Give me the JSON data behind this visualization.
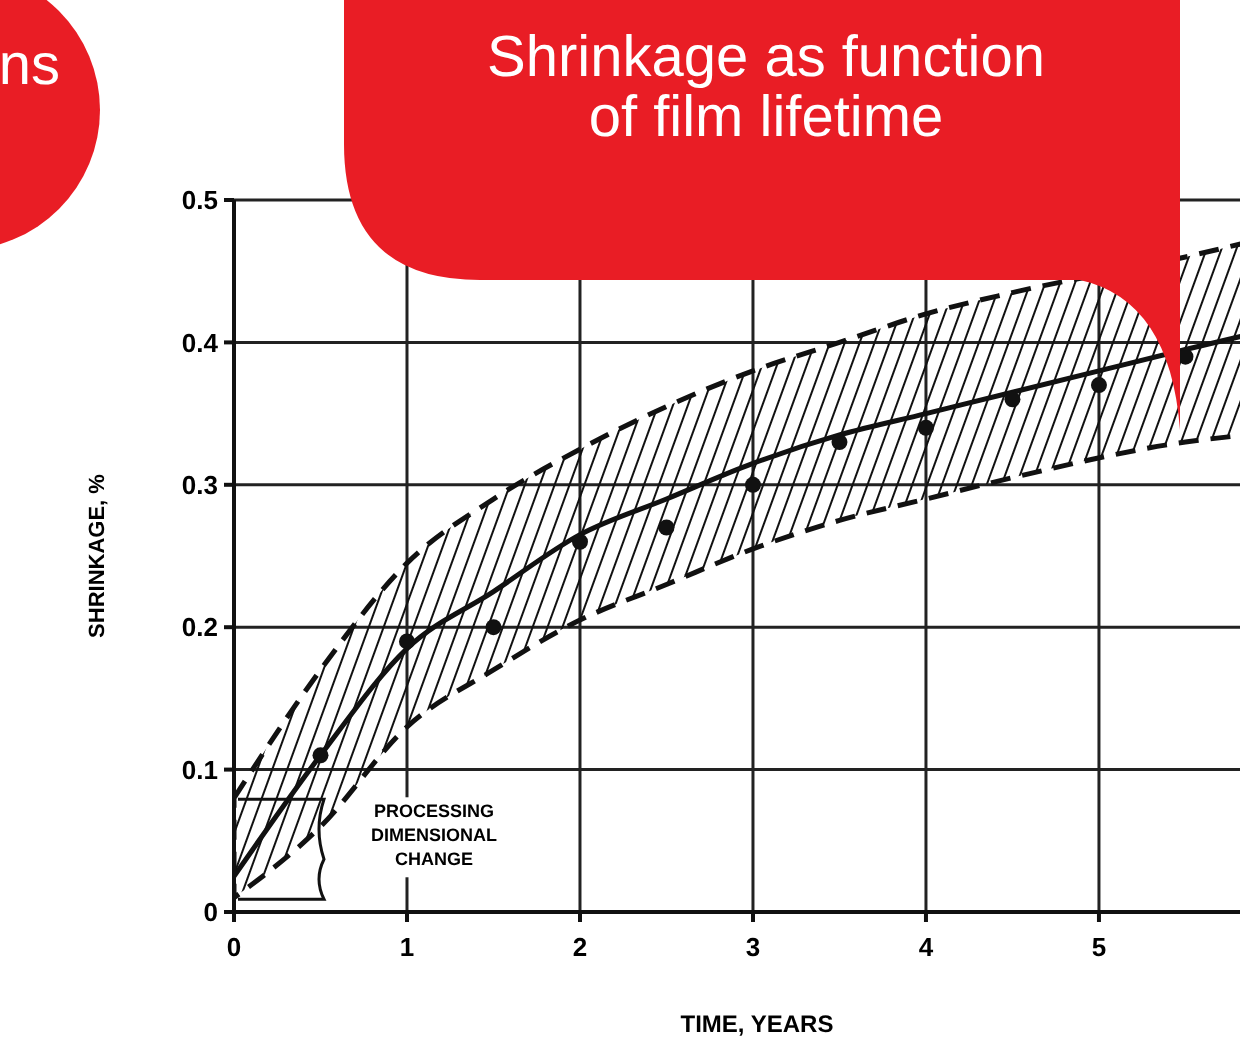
{
  "chart_data": {
    "type": "line",
    "title": "Shrinkage as function of film lifetime",
    "xlabel": "TIME, YEARS",
    "ylabel": "SHRINKAGE, %",
    "annotations": [
      "ns",
      "PROCESSING DIMENSIONAL CHANGE"
    ],
    "xlim": [
      0,
      5.85
    ],
    "xticks": [
      0,
      1,
      2,
      3,
      4,
      5
    ],
    "ylim": [
      0,
      0.5
    ],
    "yticks": [
      0,
      0.1,
      0.2,
      0.3,
      0.4,
      0.5
    ],
    "grid": true,
    "series": [
      {
        "color": "#111111",
        "line_style": "solid",
        "marker": "none",
        "x": [
          0,
          0.5,
          1,
          1.5,
          2,
          2.5,
          3,
          3.5,
          4,
          4.5,
          5,
          5.5,
          5.85
        ],
        "values": [
          0.025,
          0.11,
          0.185,
          0.225,
          0.265,
          0.29,
          0.315,
          0.335,
          0.35,
          0.365,
          0.38,
          0.395,
          0.405
        ],
        "lower": [
          0.01,
          0.06,
          0.13,
          0.17,
          0.205,
          0.23,
          0.255,
          0.275,
          0.29,
          0.305,
          null,
          0.33,
          0.335
        ],
        "upper": [
          0.08,
          0.17,
          0.245,
          0.29,
          0.325,
          0.355,
          0.38,
          0.4,
          0.42,
          0.435,
          null,
          0.46,
          0.47
        ]
      },
      {
        "type": "scatter",
        "color": "#111111",
        "marker": "circle",
        "x": [
          0.5,
          1,
          1.5,
          2,
          2.5,
          3,
          3.5,
          4,
          4.5,
          5,
          5.5
        ],
        "values": [
          0.11,
          0.19,
          0.2,
          0.26,
          0.27,
          0.3,
          0.33,
          0.34,
          0.36,
          0.37,
          0.39
        ]
      }
    ]
  }
}
